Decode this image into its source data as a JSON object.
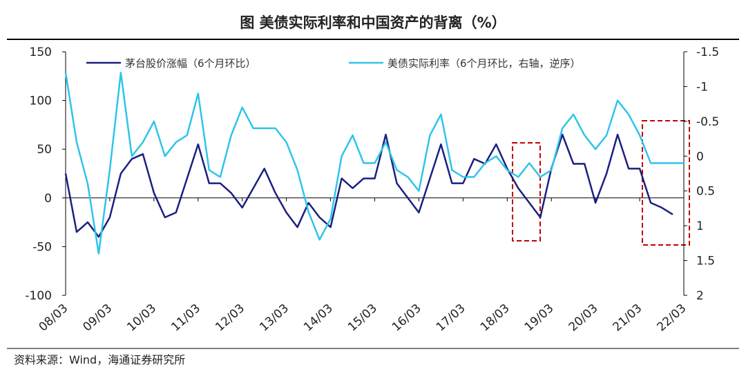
{
  "chart_data": {
    "type": "line",
    "title": "图  美债实际利率和中国资产的背离（%）",
    "source": "资料来源：Wind，海通证券研究所",
    "categories": [
      "08/03",
      null,
      null,
      null,
      "09/03",
      null,
      null,
      null,
      "10/03",
      null,
      null,
      null,
      "11/03",
      null,
      null,
      null,
      "12/03",
      null,
      null,
      null,
      "13/03",
      null,
      null,
      null,
      "14/03",
      null,
      null,
      null,
      "15/03",
      null,
      null,
      null,
      "16/03",
      null,
      null,
      null,
      "17/03",
      null,
      null,
      null,
      "18/03",
      null,
      null,
      null,
      "19/03",
      null,
      null,
      null,
      "20/03",
      null,
      null,
      null,
      "21/03",
      null,
      null,
      null,
      "22/03"
    ],
    "series": [
      {
        "name": "茅台股价涨幅（6个月环比）",
        "color": "#1a1f80",
        "axis": "y",
        "values": [
          25,
          -35,
          -25,
          -40,
          -20,
          25,
          40,
          45,
          5,
          -20,
          -15,
          20,
          55,
          15,
          15,
          5,
          -10,
          10,
          30,
          5,
          -15,
          -30,
          -5,
          -20,
          -30,
          20,
          10,
          20,
          20,
          65,
          15,
          0,
          -15,
          20,
          55,
          15,
          15,
          40,
          35,
          55,
          30,
          10,
          -5,
          -20,
          30,
          65,
          35,
          35,
          -5,
          25,
          65,
          30,
          30,
          -5,
          -10,
          -17,
          null
        ]
      },
      {
        "name": "美债实际利率（6个月环比，右轴，逆序）",
        "color": "#2ec4ea",
        "axis": "y2",
        "values": [
          -1.2,
          -0.2,
          0.4,
          1.4,
          0.2,
          -1.2,
          0.0,
          -0.2,
          -0.5,
          0.0,
          -0.2,
          -0.3,
          -0.9,
          0.2,
          0.3,
          -0.3,
          -0.7,
          -0.4,
          -0.4,
          -0.4,
          -0.2,
          0.2,
          0.8,
          1.2,
          0.9,
          0.0,
          -0.3,
          0.1,
          0.1,
          -0.2,
          0.2,
          0.3,
          0.5,
          -0.3,
          -0.6,
          0.2,
          0.3,
          0.3,
          0.1,
          0.0,
          0.2,
          0.3,
          0.1,
          0.3,
          0.2,
          -0.4,
          -0.6,
          -0.3,
          -0.1,
          -0.3,
          -0.8,
          -0.6,
          -0.3,
          0.1,
          0.1,
          0.1,
          0.1
        ]
      }
    ],
    "ylim": [
      -100,
      150
    ],
    "yticks": [
      -100,
      -50,
      0,
      50,
      100,
      150
    ],
    "y2lim": [
      2,
      -1.5
    ],
    "y2ticks": [
      -1.5,
      -1,
      -0.5,
      0,
      0.5,
      1,
      1.5,
      2
    ],
    "grid": false
  }
}
